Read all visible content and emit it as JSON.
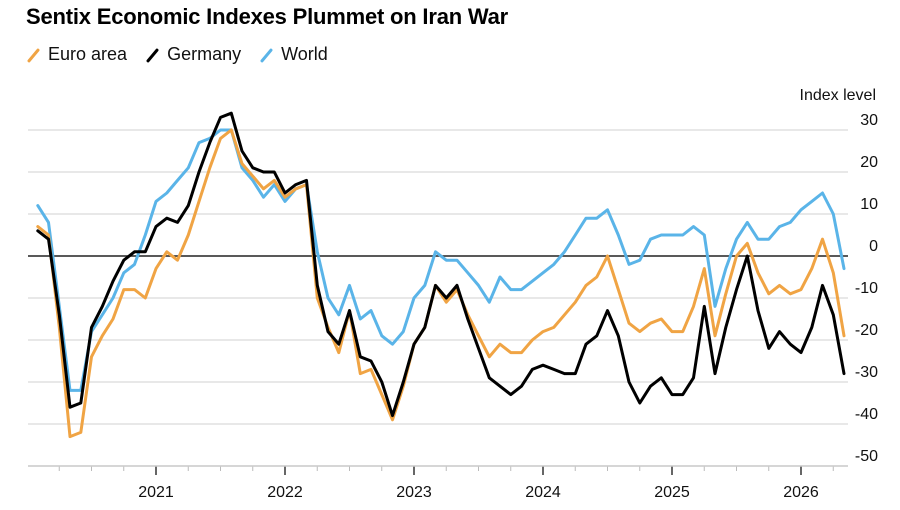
{
  "chart_data": {
    "type": "line",
    "title": "Sentix Economic Indexes Plummet on Iran War",
    "xlabel": "",
    "ylabel": "Index level",
    "ylim": [
      -50,
      30
    ],
    "yticks": [
      30,
      20,
      10,
      0,
      -10,
      -20,
      -30,
      -40,
      -50
    ],
    "ytick_labels": [
      "30",
      "20",
      "10",
      "0",
      "-10",
      "-20",
      "-30",
      "-40",
      "-50"
    ],
    "xtick_labels": [
      "2021",
      "2022",
      "2023",
      "2024",
      "2025",
      "2026"
    ],
    "x_start": "2020-02",
    "x_frequency": "monthly",
    "grid": true,
    "legend_position": "top-left",
    "series": [
      {
        "name": "Euro area",
        "color": "#f0a444",
        "values": [
          7,
          5,
          -17,
          -43,
          -42,
          -24,
          -19,
          -15,
          -8,
          -8,
          -10,
          -3,
          1,
          -1,
          5,
          13,
          21,
          28,
          30,
          22,
          19,
          16,
          18,
          14,
          16,
          17,
          -10,
          -17,
          -23,
          -13,
          -28,
          -27,
          -33,
          -39,
          -31,
          -21,
          -17,
          -7,
          -11,
          -8,
          -14,
          -19,
          -24,
          -21,
          -23,
          -23,
          -20,
          -18,
          -17,
          -14,
          -11,
          -7,
          -5,
          0,
          -8,
          -16,
          -18,
          -16,
          -15,
          -18,
          -18,
          -12,
          -3,
          -19,
          -9,
          0,
          3,
          -4,
          -9,
          -7,
          -9,
          -8,
          -3,
          4,
          -4,
          -19
        ]
      },
      {
        "name": "Germany",
        "color": "#000000",
        "values": [
          6,
          4,
          -14,
          -36,
          -35,
          -17,
          -12,
          -6,
          -1,
          1,
          1,
          7,
          9,
          8,
          12,
          20,
          27,
          33,
          34,
          25,
          21,
          20,
          20,
          15,
          17,
          18,
          -7,
          -18,
          -21,
          -13,
          -24,
          -25,
          -30,
          -38,
          -30,
          -21,
          -17,
          -7,
          -10,
          -7,
          -15,
          -22,
          -29,
          -31,
          -33,
          -31,
          -27,
          -26,
          -27,
          -28,
          -28,
          -21,
          -19,
          -13,
          -19,
          -30,
          -35,
          -31,
          -29,
          -33,
          -33,
          -29,
          -12,
          -28,
          -17,
          -8,
          0,
          -13,
          -22,
          -18,
          -21,
          -23,
          -17,
          -7,
          -14,
          -28
        ]
      },
      {
        "name": "World",
        "color": "#5ab4e8",
        "values": [
          12,
          8,
          -12,
          -32,
          -32,
          -18,
          -14,
          -10,
          -4,
          -2,
          5,
          13,
          15,
          18,
          21,
          27,
          28,
          30,
          30,
          21,
          18,
          14,
          17,
          13,
          16,
          17,
          1,
          -10,
          -14,
          -7,
          -15,
          -13,
          -19,
          -21,
          -18,
          -10,
          -7,
          1,
          -1,
          -1,
          -4,
          -7,
          -11,
          -5,
          -8,
          -8,
          -6,
          -4,
          -2,
          1,
          5,
          9,
          9,
          11,
          5,
          -2,
          -1,
          4,
          5,
          5,
          5,
          7,
          5,
          -12,
          -3,
          4,
          8,
          4,
          4,
          7,
          8,
          11,
          13,
          15,
          10,
          -3
        ]
      }
    ]
  },
  "legend": {
    "items": [
      {
        "label": "Euro area",
        "color": "#f0a444"
      },
      {
        "label": "Germany",
        "color": "#000000"
      },
      {
        "label": "World",
        "color": "#5ab4e8"
      }
    ]
  },
  "colors": {
    "grid": "#d9d9d9",
    "zero_line": "#222222",
    "axis": "#cccccc"
  }
}
